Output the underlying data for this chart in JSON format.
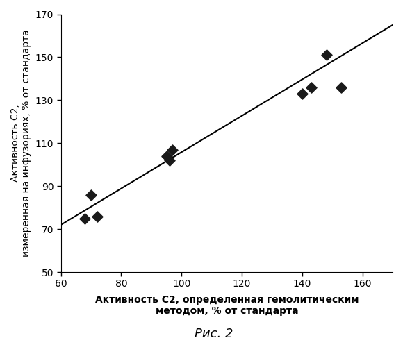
{
  "x_data": [
    68,
    72,
    70,
    95,
    96,
    97,
    140,
    143,
    148,
    153
  ],
  "y_data": [
    75,
    76,
    86,
    104,
    102,
    107,
    133,
    136,
    151,
    136
  ],
  "xlim": [
    60,
    170
  ],
  "ylim": [
    50,
    170
  ],
  "xticks": [
    60,
    80,
    100,
    120,
    140,
    160
  ],
  "yticks": [
    50,
    70,
    90,
    110,
    130,
    150,
    170
  ],
  "xlabel_line1": "Активность С2, определенная гемолитическим",
  "xlabel_line2": "методом, % от стандарта",
  "ylabel_line1": "Активность С2,",
  "ylabel_line2": "измеренная на инфузориях, % от стандарта",
  "caption": "Рис. 2",
  "line_color": "#000000",
  "marker_color": "#1a1a1a",
  "background_color": "#ffffff",
  "label_fontsize": 10,
  "tick_fontsize": 10,
  "caption_fontsize": 13,
  "marker_size": 60
}
